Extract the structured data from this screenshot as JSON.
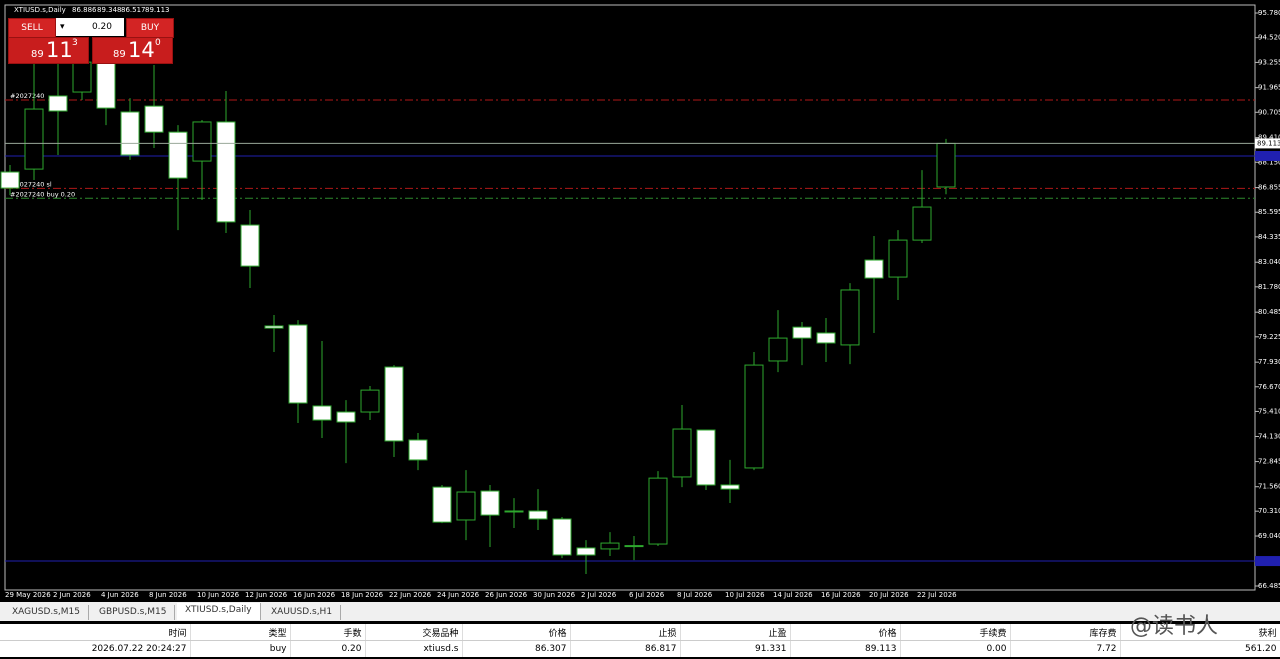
{
  "chart_data": {
    "type": "candlestick",
    "title": "XTIUSD.s,Daily",
    "categories": [
      "29 May 2026",
      null,
      "2 Jun 2026",
      null,
      "4 Jun 2026",
      null,
      "8 Jun 2026",
      null,
      "10 Jun 2026",
      null,
      "12 Jun 2026",
      null,
      "16 Jun 2026",
      null,
      "18 Jun 2026",
      null,
      "22 Jun 2026",
      null,
      "24 Jun 2026",
      null,
      "26 Jun 2026",
      null,
      "30 Jun 2026",
      null,
      "2 Jul 2026",
      null,
      "6 Jul 2026",
      null,
      "8 Jul 2026",
      null,
      "10 Jul 2026",
      null,
      "14 Jul 2026",
      null,
      "16 Jul 2026",
      null,
      "20 Jul 2026",
      null,
      "22 Jul 2026",
      null
    ],
    "open": [
      87.65,
      87.8,
      91.54,
      91.74,
      93.22,
      90.72,
      91.02,
      89.69,
      88.21,
      90.21,
      84.94,
      79.78,
      79.83,
      75.69,
      75.38,
      75.38,
      77.68,
      73.95,
      71.54,
      69.86,
      71.34,
      70.32,
      70.32,
      69.91,
      68.43,
      68.38,
      68.53,
      68.63,
      72.06,
      74.46,
      71.65,
      72.52,
      77.99,
      79.72,
      79.42,
      78.81,
      83.15,
      82.28,
      84.17,
      86.886
    ],
    "high": [
      88.01,
      93.27,
      93.63,
      94.4,
      94.4,
      91.43,
      93.12,
      90.05,
      90.31,
      91.79,
      85.71,
      80.34,
      80.08,
      79.01,
      75.99,
      76.71,
      77.78,
      74.31,
      71.65,
      72.41,
      71.65,
      70.98,
      71.44,
      70.01,
      68.83,
      69.24,
      69.04,
      72.36,
      75.74,
      74.46,
      72.93,
      78.45,
      80.59,
      79.98,
      80.19,
      81.97,
      84.38,
      84.68,
      87.75,
      89.348
    ],
    "low": [
      86.47,
      87.24,
      88.52,
      91.33,
      90.05,
      88.27,
      88.88,
      84.68,
      86.22,
      84.53,
      81.72,
      78.45,
      74.82,
      74.05,
      72.77,
      74.97,
      73.08,
      72.41,
      69.7,
      68.83,
      68.48,
      69.45,
      69.35,
      67.91,
      67.1,
      68.02,
      67.81,
      68.53,
      71.54,
      71.39,
      70.73,
      72.41,
      77.42,
      77.78,
      77.94,
      77.83,
      79.42,
      81.11,
      84.02,
      86.517
    ],
    "close": [
      86.83,
      90.87,
      90.77,
      93.27,
      90.92,
      88.52,
      89.69,
      87.34,
      90.21,
      85.1,
      82.84,
      79.67,
      75.84,
      74.97,
      74.87,
      76.5,
      73.9,
      72.93,
      69.75,
      71.29,
      70.11,
      70.3,
      69.91,
      68.07,
      68.07,
      68.68,
      68.55,
      72.0,
      74.51,
      71.65,
      71.44,
      77.78,
      79.16,
      79.16,
      78.91,
      81.62,
      82.23,
      84.17,
      85.86,
      89.113
    ],
    "up_color": "#000000",
    "down_color": "#ffffff",
    "wick_color": "#2ea82e",
    "bid_color": "#9aa89a",
    "ylim": [
      66.28,
      96.19
    ],
    "yticks": [
      {
        "value": 95.78,
        "label": "95.780"
      },
      {
        "value": 94.52,
        "label": "94.520"
      },
      93.255,
      91.965,
      90.705,
      {
        "value": 89.41,
        "label": "89.410"
      },
      {
        "value": 88.15,
        "label": "88.150"
      },
      86.855,
      85.595,
      84.335,
      {
        "value": 83.04,
        "label": "83.040"
      },
      {
        "value": 81.78,
        "label": "81.780"
      },
      80.485,
      79.225,
      {
        "value": 77.93,
        "label": "77.930"
      },
      {
        "value": 76.67,
        "label": "76.670"
      },
      {
        "value": 75.41,
        "label": "75.410"
      },
      {
        "value": 74.13,
        "label": "74.130"
      },
      72.845,
      {
        "value": 71.56,
        "label": "71.560"
      },
      {
        "value": 70.31,
        "label": "70.310"
      },
      {
        "value": 69.04,
        "label": "69.040"
      },
      66.485
    ],
    "grid": false,
    "levels": [
      {
        "name": "#2027240",
        "value": 91.331,
        "color": "#b01818"
      },
      {
        "name": "#2027240 sl",
        "value": 86.817,
        "color": "#b01818"
      },
      {
        "name": "#2027240 buy 0.20",
        "value": 86.307,
        "color": "#2e8a2e"
      }
    ],
    "hlines": [
      {
        "value": 88.47,
        "color": "#2020b0"
      },
      {
        "value": 67.76,
        "color": "#2020b0"
      }
    ]
  },
  "panel": {
    "sell": "SELL",
    "buy": "BUY",
    "lot": "0.20",
    "sell_price": [
      "89",
      "11",
      "3"
    ],
    "buy_price": [
      "89",
      "14",
      "0"
    ]
  },
  "tabs": [
    "XAGUSD.s,M15",
    "GBPUSD.s,M15",
    "XTIUSD.s,Daily",
    "XAUUSD.s,H1"
  ],
  "table": {
    "header": [
      "时间",
      "类型",
      "手数",
      "交易品种",
      "价格",
      "止损",
      "止盈",
      "价格",
      "手续费",
      "库存费",
      "获利"
    ],
    "rows": [
      [
        "2026.07.22 20:24:27",
        "buy",
        "0.20",
        "xtiusd.s",
        "86.307",
        "86.817",
        "91.331",
        "89.113",
        "0.00",
        "7.72",
        "561.20"
      ]
    ]
  },
  "watermark": "@读书人"
}
